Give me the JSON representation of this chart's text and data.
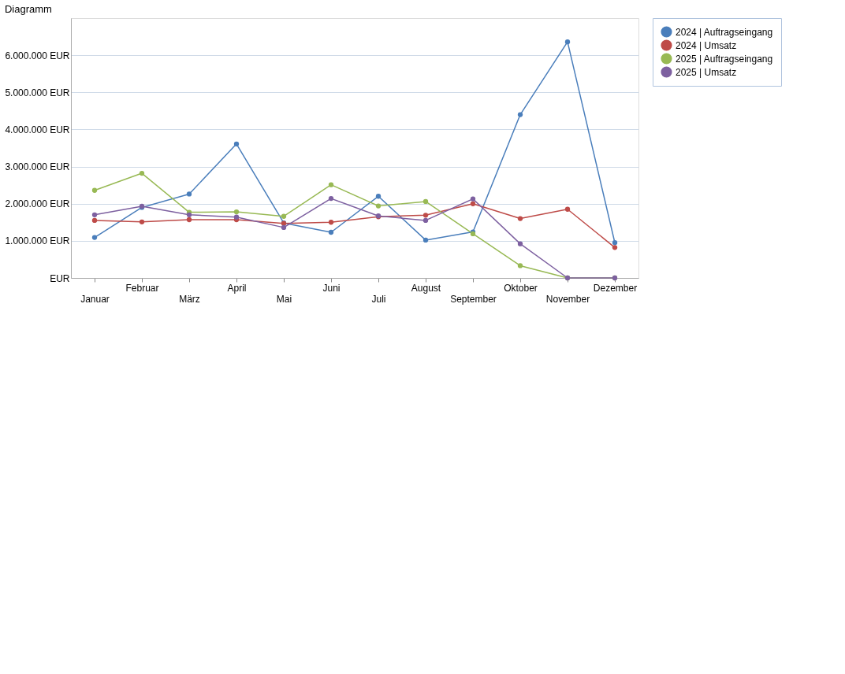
{
  "chart_data": {
    "type": "line",
    "title": "Diagramm",
    "categories": [
      "Januar",
      "Februar",
      "März",
      "April",
      "Mai",
      "Juni",
      "Juli",
      "August",
      "September",
      "Oktober",
      "November",
      "Dezember"
    ],
    "series": [
      {
        "name": "2024 | Auftragseingang",
        "color": "#4a7ebb",
        "values": [
          1090000,
          1900000,
          2260000,
          3610000,
          1480000,
          1230000,
          2200000,
          1020000,
          1240000,
          4400000,
          6360000,
          950000
        ]
      },
      {
        "name": "2024 | Umsatz",
        "color": "#be4b48",
        "values": [
          1550000,
          1510000,
          1570000,
          1570000,
          1470000,
          1500000,
          1650000,
          1690000,
          2000000,
          1600000,
          1850000,
          820000
        ]
      },
      {
        "name": "2025 | Auftragseingang",
        "color": "#98b954",
        "values": [
          2360000,
          2820000,
          1770000,
          1780000,
          1660000,
          2510000,
          1940000,
          2060000,
          1190000,
          330000,
          0,
          0
        ]
      },
      {
        "name": "2025 | Umsatz",
        "color": "#7d60a0",
        "values": [
          1700000,
          1930000,
          1700000,
          1640000,
          1360000,
          2140000,
          1670000,
          1550000,
          2130000,
          920000,
          0,
          0
        ]
      }
    ],
    "ylim": [
      0,
      7000000
    ],
    "yticks": [
      {
        "value": 0,
        "label": "EUR"
      },
      {
        "value": 1000000,
        "label": "1.000.000 EUR"
      },
      {
        "value": 2000000,
        "label": "2.000.000 EUR"
      },
      {
        "value": 3000000,
        "label": "3.000.000 EUR"
      },
      {
        "value": 4000000,
        "label": "4.000.000 EUR"
      },
      {
        "value": 5000000,
        "label": "5.000.000 EUR"
      },
      {
        "value": 6000000,
        "label": "6.000.000 EUR"
      }
    ],
    "grid": "y",
    "legend": "top right",
    "marker": "circle",
    "line_style": "solid"
  }
}
